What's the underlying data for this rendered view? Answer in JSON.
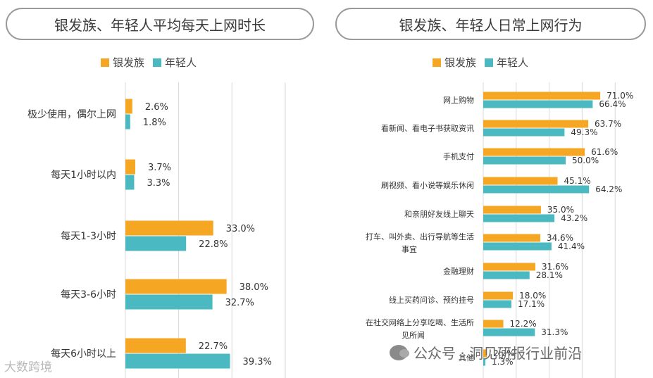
{
  "left_panel": {
    "title": "银发族、年轻人平均每天上网时长"
  },
  "right_panel": {
    "title": "银发族、年轻人日常上网行为"
  },
  "legend": {
    "silver": "银发族",
    "young": "年轻人"
  },
  "colors": {
    "silver": "#F5A623",
    "young": "#4BB9C1"
  },
  "watermark": {
    "right": "公众号 · 洞见研报行业前沿",
    "left": "大数跨境"
  },
  "chart_data": [
    {
      "type": "bar",
      "orientation": "horizontal",
      "title": "银发族、年轻人平均每天上网时长",
      "categories": [
        "极少使用，偶尔上网",
        "每天1小时以内",
        "每天1-3小时",
        "每天3-6小时",
        "每天6小时以上"
      ],
      "series": [
        {
          "name": "银发族",
          "values": [
            2.6,
            3.7,
            33.0,
            38.0,
            22.7
          ],
          "labels": [
            "2.6%",
            "3.7%",
            "33.0%",
            "38.0%",
            "22.7%"
          ]
        },
        {
          "name": "年轻人",
          "values": [
            1.8,
            3.3,
            22.8,
            32.7,
            39.3
          ],
          "labels": [
            "1.8%",
            "3.3%",
            "22.8%",
            "32.7%",
            "39.3%"
          ]
        }
      ],
      "xlim": [
        0,
        60
      ],
      "legend": "top",
      "grid": true
    },
    {
      "type": "bar",
      "orientation": "horizontal",
      "title": "银发族、年轻人日常上网行为",
      "categories": [
        "网上购物",
        "看新闻、看电子书获取资讯",
        "手机支付",
        "刷视频、看小说等娱乐休闲",
        "和亲朋好友线上聊天",
        "打车、叫外卖、出行导航等生活事宜",
        "金融理财",
        "线上买药问诊、预约挂号",
        "在社交网络上分享吃喝、生活所见所闻",
        "其他"
      ],
      "category_lines": [
        [
          "网上购物"
        ],
        [
          "看新闻、看电子书获取资讯"
        ],
        [
          "手机支付"
        ],
        [
          "刷视频、看小说等娱乐休闲"
        ],
        [
          "和亲朋好友线上聊天"
        ],
        [
          "打车、叫外卖、出行导航等生活",
          "事宜"
        ],
        [
          "金融理财"
        ],
        [
          "线上买药问诊、预约挂号"
        ],
        [
          "在社交网络上分享吃喝、生活所",
          "见所闻"
        ],
        [
          "其他"
        ]
      ],
      "series": [
        {
          "name": "银发族",
          "values": [
            71.0,
            63.7,
            61.6,
            45.1,
            35.0,
            34.6,
            31.6,
            18.0,
            12.2,
            2.2
          ],
          "labels": [
            "71.0%",
            "63.7%",
            "61.6%",
            "45.1%",
            "35.0%",
            "34.6%",
            "31.6%",
            "18.0%",
            "12.2%",
            "2.2%"
          ]
        },
        {
          "name": "年轻人",
          "values": [
            66.4,
            49.3,
            50.0,
            64.2,
            43.2,
            41.4,
            28.1,
            17.1,
            31.3,
            1.3
          ],
          "labels": [
            "66.4%",
            "49.3%",
            "50.0%",
            "64.2%",
            "43.2%",
            "41.4%",
            "28.1%",
            "17.1%",
            "31.3%",
            "1.3%"
          ]
        }
      ],
      "xlim": [
        0,
        80
      ],
      "legend": "top",
      "grid": true
    }
  ]
}
